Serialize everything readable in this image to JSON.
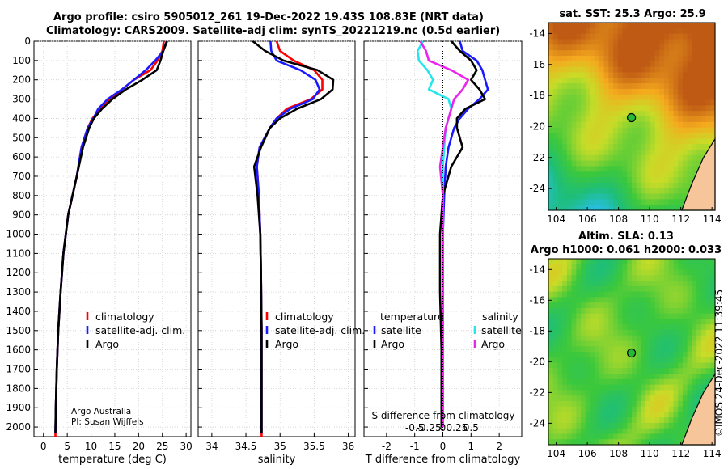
{
  "header": {
    "title_line1": "Argo profile: csiro 5905012_261 19-Dec-2022 19.43S 108.83E (NRT data)",
    "title_line2": "Climatology: CARS2009. Satellite-adj clim: synTS_20221219.nc (0.5d earlier)"
  },
  "stamp": "©IMOS 24-Dec-2022 11:39:45",
  "colors": {
    "climatology": "#ff0000",
    "satellite": "#1a1aff",
    "argo": "#000000",
    "sal_satellite": "#22e6ee",
    "sal_argo": "#ee22ee"
  },
  "chart_data": [
    {
      "type": "line",
      "id": "temperature",
      "title": "",
      "xlabel": "temperature (deg C)",
      "ylabel": "",
      "xlim": [
        -2,
        31
      ],
      "ylim": [
        2050,
        0
      ],
      "xticks": [
        0,
        5,
        10,
        15,
        20,
        25,
        30
      ],
      "xtick_labels": [
        "0",
        "5",
        "10",
        "15",
        "20",
        "25",
        "30"
      ],
      "yticks": [
        0,
        100,
        200,
        300,
        400,
        500,
        600,
        700,
        800,
        900,
        1000,
        1100,
        1200,
        1300,
        1400,
        1500,
        1600,
        1700,
        1800,
        1900,
        2000
      ],
      "ytick_labels": [
        "0",
        "100",
        "200",
        "300",
        "400",
        "500",
        "600",
        "700",
        "800",
        "900",
        "1000",
        "1100",
        "1200",
        "1300",
        "1400",
        "1500",
        "1600",
        "1700",
        "1800",
        "1900",
        "2000"
      ],
      "legend": [
        "climatology",
        "satellite-adj. clim.",
        "Argo"
      ],
      "annotations": [
        "Argo Australia",
        "PI: Susan Wijffels"
      ],
      "series": [
        {
          "name": "climatology",
          "color": "#ff0000",
          "x": [
            25.3,
            25.0,
            24.0,
            22.5,
            19.0,
            16.5,
            14.0,
            12.0,
            10.3,
            9.3,
            8.0,
            7.0,
            5.2,
            4.2,
            3.6,
            3.1,
            2.8,
            2.6,
            2.5
          ],
          "y": [
            0,
            50,
            100,
            150,
            200,
            250,
            300,
            350,
            400,
            450,
            550,
            700,
            900,
            1100,
            1300,
            1500,
            1700,
            1900,
            2050
          ]
        },
        {
          "name": "satellite-adj. clim.",
          "color": "#1a1aff",
          "x": [
            25.9,
            25.2,
            23.5,
            21.5,
            19.0,
            16.5,
            13.5,
            11.5,
            10.5,
            9.3,
            8.0,
            7.0,
            5.2,
            4.2,
            3.6,
            3.1,
            2.8,
            2.6,
            2.5
          ],
          "y": [
            0,
            50,
            100,
            150,
            200,
            250,
            300,
            350,
            400,
            450,
            550,
            700,
            900,
            1100,
            1300,
            1500,
            1700,
            1900,
            2030
          ]
        },
        {
          "name": "Argo",
          "color": "#000000",
          "x": [
            26.0,
            25.2,
            24.6,
            23.8,
            20.8,
            17.3,
            14.5,
            12.3,
            10.6,
            9.6,
            8.3,
            7.0,
            5.2,
            4.2,
            3.6,
            3.1,
            2.8,
            2.6,
            2.5
          ],
          "y": [
            0,
            50,
            100,
            150,
            200,
            250,
            300,
            350,
            400,
            450,
            550,
            700,
            900,
            1100,
            1300,
            1500,
            1700,
            1900,
            2030
          ]
        }
      ]
    },
    {
      "type": "line",
      "id": "salinity",
      "title": "",
      "xlabel": "salinity",
      "ylabel": "",
      "xlim": [
        33.8,
        36.1
      ],
      "ylim": [
        2050,
        0
      ],
      "xticks": [
        34,
        34.5,
        35,
        35.5,
        36
      ],
      "xtick_labels": [
        "34",
        "34.5",
        "35",
        "35.5",
        "36"
      ],
      "legend": [
        "climatology",
        "satellite-adj. clim.",
        "Argo"
      ],
      "series": [
        {
          "name": "climatology",
          "color": "#ff0000",
          "x": [
            34.95,
            35.0,
            35.2,
            35.5,
            35.62,
            35.62,
            35.45,
            35.1,
            34.95,
            34.85,
            34.7,
            34.66,
            34.69,
            34.71,
            34.72,
            34.73,
            34.73,
            34.73,
            34.73
          ],
          "y": [
            0,
            50,
            100,
            150,
            200,
            250,
            300,
            350,
            400,
            450,
            550,
            650,
            800,
            1000,
            1200,
            1500,
            1700,
            1900,
            2050
          ]
        },
        {
          "name": "satellite-adj. clim.",
          "color": "#1a1aff",
          "x": [
            34.86,
            34.87,
            34.95,
            35.3,
            35.52,
            35.58,
            35.48,
            35.15,
            34.95,
            34.85,
            34.7,
            34.66,
            34.69,
            34.71,
            34.72,
            34.73,
            34.73,
            34.73,
            34.73
          ],
          "y": [
            0,
            50,
            100,
            150,
            200,
            250,
            300,
            350,
            400,
            450,
            550,
            650,
            800,
            1000,
            1200,
            1500,
            1700,
            1900,
            2030
          ]
        },
        {
          "name": "Argo",
          "color": "#000000",
          "x": [
            34.6,
            34.78,
            35.05,
            35.55,
            35.78,
            35.77,
            35.6,
            35.25,
            35.0,
            34.85,
            34.72,
            34.62,
            34.67,
            34.71,
            34.72,
            34.73,
            34.73,
            34.73,
            34.73
          ],
          "y": [
            0,
            50,
            100,
            150,
            200,
            250,
            300,
            350,
            400,
            450,
            550,
            650,
            800,
            1000,
            1200,
            1500,
            1700,
            1900,
            2030
          ]
        }
      ]
    },
    {
      "type": "line",
      "id": "difference",
      "title": "",
      "xlabel": "T difference from climatology",
      "xlabel_top": "S difference from climatology",
      "ylabel": "",
      "xlim": [
        -2.8,
        2.8
      ],
      "ylim": [
        2050,
        0
      ],
      "xticks": [
        -2,
        -1,
        0,
        1,
        2
      ],
      "xtick_labels": [
        "-2",
        "-1",
        "0",
        "1",
        "2"
      ],
      "sticks": [
        -1.0,
        -0.5,
        0,
        0.5,
        1.0
      ],
      "stick_labels": [
        "-0.5",
        "-0.25",
        "0",
        "0.25",
        "0.5"
      ],
      "legend_title_left": "temperature",
      "legend_title_right": "salinity",
      "legend_left": [
        "satellite",
        "Argo"
      ],
      "legend_right": [
        "satellite",
        "Argo"
      ],
      "series": [
        {
          "name": "T satellite",
          "color": "#1a1aff",
          "x": [
            0.6,
            0.7,
            1.2,
            1.4,
            1.5,
            1.6,
            1.3,
            0.9,
            0.6,
            0.4,
            0.2,
            0.1,
            0.05,
            0,
            0,
            0,
            0
          ],
          "y": [
            0,
            50,
            100,
            150,
            200,
            250,
            300,
            350,
            400,
            450,
            550,
            650,
            800,
            1000,
            1300,
            1600,
            2000
          ]
        },
        {
          "name": "T Argo",
          "color": "#000000",
          "x": [
            0.3,
            0.6,
            1.0,
            1.2,
            1.0,
            1.3,
            1.5,
            0.8,
            0.5,
            0.5,
            0.7,
            0.3,
            0.0,
            -0.1,
            -0.1,
            -0.05,
            -0.05
          ],
          "y": [
            0,
            50,
            100,
            150,
            200,
            250,
            300,
            350,
            400,
            450,
            550,
            650,
            800,
            1000,
            1300,
            1600,
            2000
          ]
        },
        {
          "name": "S satellite",
          "color": "#22e6ee",
          "x": [
            -0.7,
            -0.9,
            -0.85,
            -0.55,
            -0.35,
            -0.5,
            0.2,
            0.3,
            0.2,
            0.1,
            0.05,
            0.0,
            0.0,
            0.0,
            0.0,
            0.0,
            0.0
          ],
          "y": [
            0,
            50,
            100,
            150,
            200,
            250,
            300,
            350,
            400,
            450,
            550,
            650,
            800,
            1000,
            1300,
            1600,
            2000
          ]
        },
        {
          "name": "S Argo",
          "color": "#ee22ee",
          "x": [
            -0.8,
            -0.6,
            -0.5,
            0.3,
            0.9,
            0.7,
            0.4,
            0.3,
            0.2,
            0.1,
            0.0,
            -0.1,
            0.0,
            0.0,
            0.0,
            0.0,
            0.0
          ],
          "y": [
            0,
            50,
            100,
            150,
            200,
            250,
            300,
            350,
            400,
            450,
            550,
            650,
            800,
            1000,
            1300,
            1600,
            2000
          ]
        }
      ]
    },
    {
      "type": "heatmap",
      "id": "sst_map",
      "title": "sat. SST: 25.3 Argo: 25.9",
      "xlim": [
        103.5,
        114.2
      ],
      "ylim": [
        -25.4,
        -13.3
      ],
      "xticks": [
        104,
        106,
        108,
        110,
        112,
        114
      ],
      "xtick_labels": [
        "104",
        "106",
        "108",
        "110",
        "112",
        "114"
      ],
      "yticks": [
        -14,
        -16,
        -18,
        -20,
        -22,
        -24
      ],
      "ytick_labels": [
        "-14",
        "-16",
        "-18",
        "-20",
        "-22",
        "-24"
      ],
      "float_position": {
        "lon": 108.83,
        "lat": -19.43
      }
    },
    {
      "type": "heatmap",
      "id": "sla_map",
      "title": "Altim. SLA: 0.13",
      "subtitle": "Argo h1000: 0.061 h2000: 0.033",
      "xlim": [
        103.5,
        114.2
      ],
      "ylim": [
        -25.4,
        -13.3
      ],
      "xticks": [
        104,
        106,
        108,
        110,
        112,
        114
      ],
      "xtick_labels": [
        "104",
        "106",
        "108",
        "110",
        "112",
        "114"
      ],
      "yticks": [
        -14,
        -16,
        -18,
        -20,
        -22,
        -24
      ],
      "ytick_labels": [
        "-14",
        "-16",
        "-18",
        "-20",
        "-22",
        "-24"
      ],
      "float_position": {
        "lon": 108.83,
        "lat": -19.43
      }
    }
  ]
}
